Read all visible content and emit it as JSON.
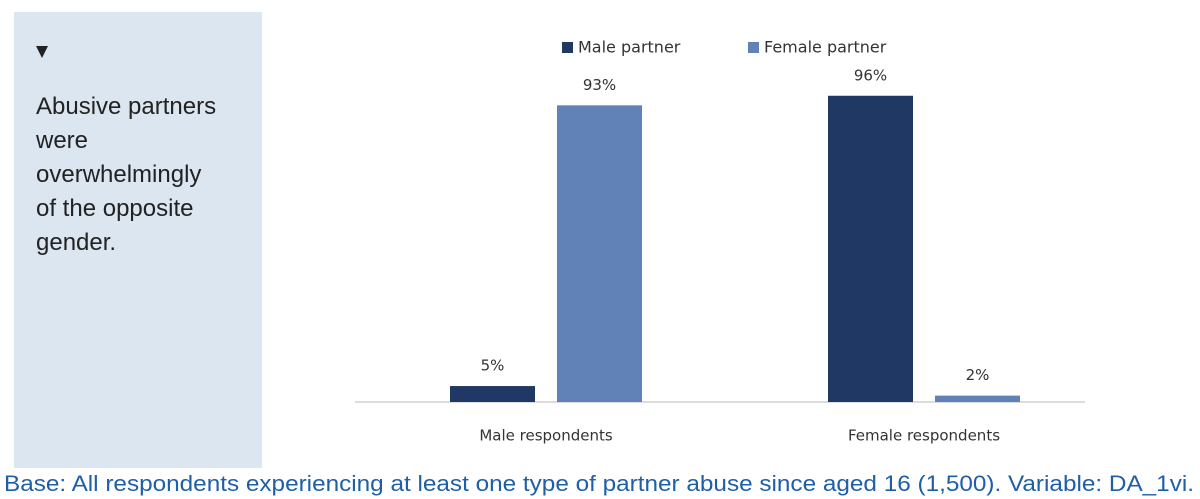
{
  "panel": {
    "text": "Abusive partners were overwhelmingly of the opposite gender."
  },
  "chart_data": {
    "type": "bar",
    "categories": [
      "Male respondents",
      "Female respondents"
    ],
    "series": [
      {
        "name": "Male partner",
        "color": "#203864",
        "values": [
          5,
          96
        ],
        "value_labels": [
          "5%",
          "96%"
        ]
      },
      {
        "name": "Female partner",
        "color": "#6082b6",
        "values": [
          93,
          2
        ],
        "value_labels": [
          "93%",
          "2%"
        ]
      }
    ]
  },
  "footnote": "Base: All respondents experiencing at least one type of partner abuse since aged 16 (1,500). Variable: DA_1vi."
}
